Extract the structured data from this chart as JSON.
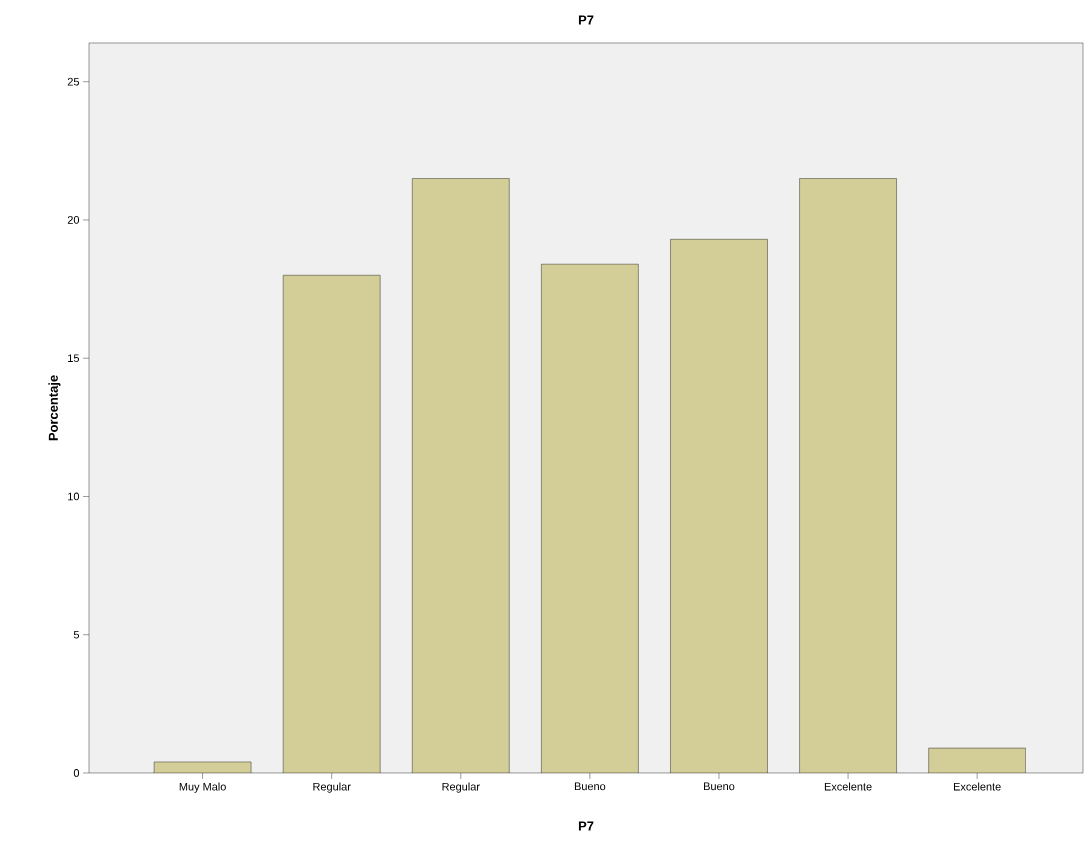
{
  "chart_data": {
    "type": "bar",
    "title": "P7",
    "xlabel": "P7",
    "ylabel": "Porcentaje",
    "categories": [
      "Muy Malo",
      "Regular",
      "Regular",
      "Bueno",
      "Bueno",
      "Excelente",
      "Excelente"
    ],
    "values": [
      0.4,
      18.0,
      21.5,
      18.4,
      19.3,
      21.5,
      0.9
    ],
    "color": "#d3ce97",
    "ylim": [
      0,
      26.4
    ],
    "yticks": [
      0,
      5,
      10,
      15,
      20,
      25
    ],
    "grid": false
  }
}
